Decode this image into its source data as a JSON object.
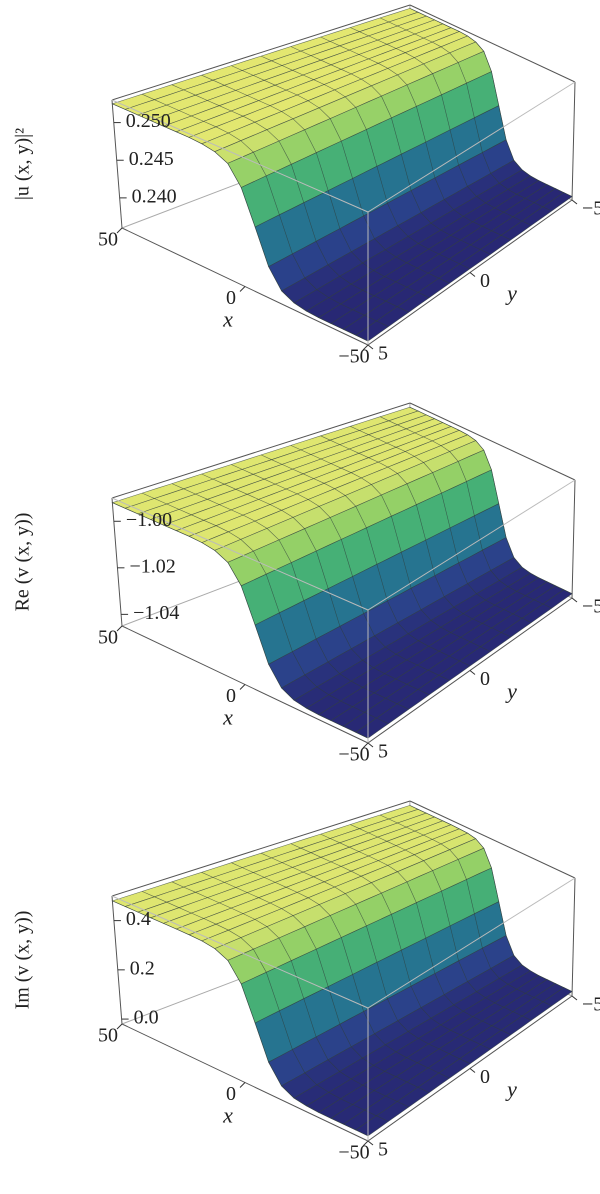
{
  "chart_data": [
    {
      "type": "surface",
      "zlabel": "|u (x, y)|²",
      "xlabel": "x",
      "ylabel": "y",
      "x": [
        -50,
        -45,
        -40,
        -35,
        -30,
        -25,
        -20,
        -15,
        -10,
        -5,
        0,
        5,
        10,
        15,
        20,
        25,
        30,
        35,
        40,
        45,
        50
      ],
      "values": [
        0.2365,
        0.2365,
        0.2365,
        0.2365,
        0.2365,
        0.2366,
        0.2369,
        0.2377,
        0.2401,
        0.2445,
        0.2489,
        0.2513,
        0.2521,
        0.2524,
        0.2525,
        0.2525,
        0.2525,
        0.2525,
        0.2525,
        0.2525,
        0.2525
      ],
      "xlim": [
        -50,
        50
      ],
      "ylim": [
        -5,
        5
      ],
      "zlim": [
        0.236,
        0.253
      ],
      "xticks": [
        {
          "value": -50,
          "label": "−50"
        },
        0,
        50
      ],
      "yticks": [
        {
          "value": -5,
          "label": "−5"
        },
        0,
        5
      ],
      "zticks": [
        {
          "value": 0.24,
          "label": "0.240"
        },
        0.245,
        {
          "value": 0.25,
          "label": "0.250"
        }
      ],
      "colormap": [
        "#27236f",
        "#2c4f96",
        "#1f9a8a",
        "#6cc463",
        "#f3ec72"
      ]
    },
    {
      "type": "surface",
      "zlabel": "Re (v (x, y))",
      "xlabel": "x",
      "ylabel": "y",
      "x": [
        -50,
        -45,
        -40,
        -35,
        -30,
        -25,
        -20,
        -15,
        -10,
        -5,
        0,
        5,
        10,
        15,
        20,
        25,
        30,
        35,
        40,
        45,
        50
      ],
      "values": [
        -1.043,
        -1.043,
        -1.043,
        -1.043,
        -1.043,
        -1.0427,
        -1.0418,
        -1.0391,
        -1.0316,
        -1.0175,
        -1.0034,
        -0.9959,
        -0.9932,
        -0.9923,
        -0.992,
        -0.992,
        -0.992,
        -0.992,
        -0.992,
        -0.992,
        -0.992
      ],
      "xlim": [
        -50,
        50
      ],
      "ylim": [
        -5,
        5
      ],
      "zlim": [
        -1.045,
        -0.99
      ],
      "xticks": [
        {
          "value": -50,
          "label": "−50"
        },
        0,
        50
      ],
      "yticks": [
        {
          "value": -5,
          "label": "−5"
        },
        0,
        5
      ],
      "zticks": [
        {
          "value": -1.04,
          "label": "−1.04"
        },
        {
          "value": -1.02,
          "label": "−1.02"
        },
        {
          "value": -1,
          "label": "−1.00"
        }
      ],
      "colormap": [
        "#27236f",
        "#2c4f96",
        "#1f9a8a",
        "#6cc463",
        "#f3ec72"
      ]
    },
    {
      "type": "surface",
      "zlabel": "Im (v (x, y))",
      "xlabel": "x",
      "ylabel": "y",
      "x": [
        -50,
        -45,
        -40,
        -35,
        -30,
        -25,
        -20,
        -15,
        -10,
        -5,
        0,
        5,
        10,
        15,
        20,
        25,
        30,
        35,
        40,
        45,
        50
      ],
      "values": [
        0,
        0,
        0,
        0,
        0,
        0.003,
        0.011,
        0.036,
        0.107,
        0.24,
        0.373,
        0.444,
        0.469,
        0.477,
        0.479,
        0.48,
        0.48,
        0.48,
        0.48,
        0.48,
        0.48
      ],
      "xlim": [
        -50,
        50
      ],
      "ylim": [
        -5,
        5
      ],
      "zlim": [
        -0.02,
        0.5
      ],
      "xticks": [
        {
          "value": -50,
          "label": "−50"
        },
        0,
        50
      ],
      "yticks": [
        {
          "value": -5,
          "label": "−5"
        },
        0,
        5
      ],
      "zticks": [
        {
          "value": 0,
          "label": "0.0"
        },
        0.2,
        0.4
      ],
      "colormap": [
        "#27236f",
        "#2c4f96",
        "#1f9a8a",
        "#6cc463",
        "#f3ec72"
      ]
    }
  ]
}
